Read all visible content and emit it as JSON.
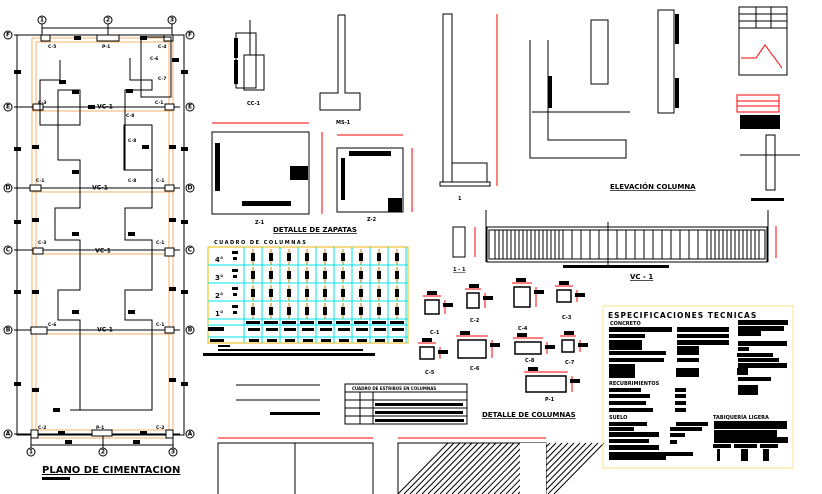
{
  "plan": {
    "title": "PLANO DE CIMENTACION",
    "grid_columns": [
      "1",
      "2",
      "3"
    ],
    "grid_rows": [
      "F",
      "E",
      "D",
      "C",
      "B",
      "A"
    ],
    "column_labels": [
      "C-5",
      "P-1",
      "C-4",
      "C-6",
      "C-7",
      "C-3",
      "C-1",
      "C-8",
      "C-8",
      "C-1",
      "C-8",
      "C-1",
      "C-3",
      "C-1",
      "C-6",
      "C-1",
      "C-2",
      "P-1",
      "C-2"
    ],
    "beam_labels": [
      "VC-1",
      "VC-1",
      "VC-1",
      "VC-1"
    ]
  },
  "footings": {
    "title": "DETALLE DE ZAPATAS",
    "labels": [
      "Z-1",
      "Z-2"
    ],
    "section_labels": [
      "CC-1",
      "MS-1"
    ]
  },
  "column_table": {
    "title": "CUADRO DE COLUMNAS",
    "floors": [
      "4°",
      "3°",
      "2°",
      "1°"
    ]
  },
  "elevation": {
    "title": "ELEVACIÓN COLUMNA",
    "beam_title": "VC - 1",
    "section_title": "1 - 1",
    "cut_labels": [
      "1",
      "1"
    ]
  },
  "column_details": {
    "title": "DETALLE DE COLUMNAS",
    "labels": [
      "C-1",
      "C-2",
      "C-4",
      "C-3",
      "C-5",
      "C-6",
      "C-8",
      "C-7",
      "P-1"
    ]
  },
  "stirrup_table": {
    "title": "CUADRO DE ESTRIBOS EN COLUMNAS"
  },
  "specs": {
    "title": "ESPECIFICACIONES TECNICAS",
    "sections": [
      "CONCRETO",
      "RECUBRIMIENTOS",
      "SUELO",
      "TABIQUERÍA LIGERA"
    ]
  },
  "colors": {
    "lines": "#000000",
    "axes_orange": "#f5b26b",
    "dimensions_red": "#ff0000",
    "table_cyan": "#00e5ee",
    "table_border": "#f0b400",
    "spec_border": "#ffe08a"
  }
}
